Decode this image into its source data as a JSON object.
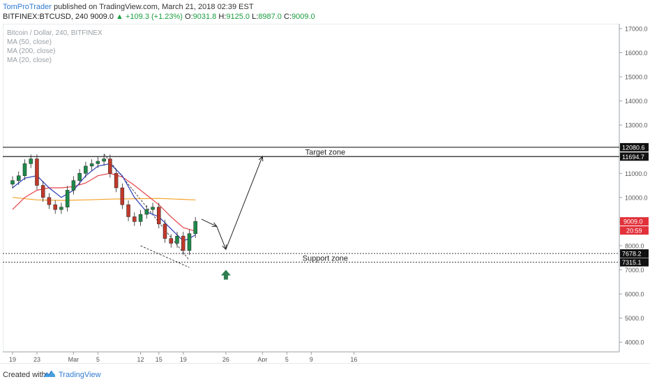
{
  "header": {
    "author": "TomProTrader",
    "published": "published on TradingView.com, March 21, 2018 02:39 EST",
    "symbol": "BITFINEX:BTCUSD, 240",
    "last": "9009.0",
    "change_arrow": "▲",
    "change": "+109.3 (+1.23%)",
    "open_label": "O:",
    "open": "9031.8",
    "high_label": "H:",
    "high": "9125.0",
    "low_label": "L:",
    "low": "8987.0",
    "close_label": "C:",
    "close": "9009.0"
  },
  "legend": {
    "title": "Bitcoin / Dollar, 240, BITFINEX",
    "ma50": "MA (50, close)",
    "ma200": "MA (200, close)",
    "ma20": "MA (20, close)"
  },
  "footer": {
    "created": "Created with",
    "brand": "TradingView"
  },
  "colors": {
    "up": "#1d8a4a",
    "down": "#c0392b",
    "ma50": "#e5454b",
    "ma200": "#f4a329",
    "ma20": "#2a3db7",
    "price_tag": "#e2313a",
    "arrow_green": "#2e7d4f"
  },
  "chart_data": {
    "type": "candlestick",
    "ylim": [
      3600,
      17200
    ],
    "y_ticks": [
      4000,
      5000,
      6000,
      7000,
      8000,
      9000,
      10000,
      11000,
      12000,
      13000,
      14000,
      15000,
      16000,
      17000
    ],
    "x_ticks": [
      "19",
      "23",
      "Mar",
      "5",
      "12",
      "15",
      "19",
      "26",
      "Apr",
      "5",
      "9",
      "16"
    ],
    "x_tick_days": [
      0,
      4,
      10,
      14,
      21,
      24,
      28,
      35,
      41,
      45,
      49,
      56
    ],
    "levels": [
      {
        "value": 12080.6,
        "label": "12080.6",
        "style": "solid"
      },
      {
        "value": 11694.7,
        "label": "11694.7",
        "style": "solid"
      },
      {
        "value": 7678.2,
        "label": "7678.2",
        "style": "dotted"
      },
      {
        "value": 7315.1,
        "label": "7315.1",
        "style": "dotted"
      }
    ],
    "price_tag": {
      "value": 9009.0,
      "label": "9009.0",
      "countdown": "20:59"
    },
    "zones": [
      {
        "label": "Target zone",
        "day": 41
      },
      {
        "label": "Support zone",
        "day": 41
      }
    ],
    "close_series": [
      {
        "day": 0,
        "close": 10700
      },
      {
        "day": 1,
        "close": 10900
      },
      {
        "day": 2,
        "close": 11400
      },
      {
        "day": 3,
        "close": 11600
      },
      {
        "day": 4,
        "close": 10500
      },
      {
        "day": 5,
        "close": 10000
      },
      {
        "day": 6,
        "close": 9700
      },
      {
        "day": 7,
        "close": 9500
      },
      {
        "day": 8,
        "close": 9600
      },
      {
        "day": 9,
        "close": 10300
      },
      {
        "day": 10,
        "close": 10700
      },
      {
        "day": 11,
        "close": 11000
      },
      {
        "day": 12,
        "close": 11300
      },
      {
        "day": 13,
        "close": 11400
      },
      {
        "day": 14,
        "close": 11500
      },
      {
        "day": 15,
        "close": 11600
      },
      {
        "day": 16,
        "close": 11000
      },
      {
        "day": 17,
        "close": 10400
      },
      {
        "day": 18,
        "close": 9700
      },
      {
        "day": 19,
        "close": 9200
      },
      {
        "day": 20,
        "close": 9000
      },
      {
        "day": 21,
        "close": 9300
      },
      {
        "day": 22,
        "close": 9500
      },
      {
        "day": 23,
        "close": 9600
      },
      {
        "day": 24,
        "close": 8900
      },
      {
        "day": 25,
        "close": 8300
      },
      {
        "day": 26,
        "close": 8100
      },
      {
        "day": 27,
        "close": 8400
      },
      {
        "day": 28,
        "close": 7800
      },
      {
        "day": 29,
        "close": 8500
      },
      {
        "day": 30,
        "close": 9009
      }
    ],
    "ma20": [
      {
        "day": 0,
        "value": 10400
      },
      {
        "day": 2,
        "value": 10800
      },
      {
        "day": 4,
        "value": 10900
      },
      {
        "day": 6,
        "value": 10400
      },
      {
        "day": 8,
        "value": 10000
      },
      {
        "day": 10,
        "value": 10300
      },
      {
        "day": 12,
        "value": 10900
      },
      {
        "day": 14,
        "value": 11300
      },
      {
        "day": 16,
        "value": 11400
      },
      {
        "day": 18,
        "value": 10900
      },
      {
        "day": 20,
        "value": 10000
      },
      {
        "day": 22,
        "value": 9400
      },
      {
        "day": 24,
        "value": 9200
      },
      {
        "day": 26,
        "value": 8700
      },
      {
        "day": 28,
        "value": 8200
      },
      {
        "day": 29,
        "value": 8300
      },
      {
        "day": 30,
        "value": 8450
      }
    ],
    "ma50": [
      {
        "day": 0,
        "value": 9500
      },
      {
        "day": 2,
        "value": 10000
      },
      {
        "day": 4,
        "value": 10300
      },
      {
        "day": 6,
        "value": 10400
      },
      {
        "day": 8,
        "value": 10400
      },
      {
        "day": 10,
        "value": 10450
      },
      {
        "day": 12,
        "value": 10600
      },
      {
        "day": 14,
        "value": 10900
      },
      {
        "day": 16,
        "value": 11000
      },
      {
        "day": 18,
        "value": 10850
      },
      {
        "day": 20,
        "value": 10500
      },
      {
        "day": 22,
        "value": 10100
      },
      {
        "day": 24,
        "value": 9700
      },
      {
        "day": 26,
        "value": 9200
      },
      {
        "day": 28,
        "value": 8750
      },
      {
        "day": 30,
        "value": 8600
      }
    ],
    "ma200": [
      {
        "day": 0,
        "value": 10000
      },
      {
        "day": 4,
        "value": 9900
      },
      {
        "day": 8,
        "value": 9880
      },
      {
        "day": 12,
        "value": 9900
      },
      {
        "day": 16,
        "value": 9930
      },
      {
        "day": 20,
        "value": 9950
      },
      {
        "day": 24,
        "value": 9960
      },
      {
        "day": 28,
        "value": 9920
      },
      {
        "day": 30,
        "value": 9900
      }
    ],
    "trendlines": [
      {
        "style": "dashed",
        "from": [
          15,
          11800
        ],
        "to": [
          29,
          7400
        ]
      },
      {
        "style": "dashed",
        "from": [
          21,
          8000
        ],
        "to": [
          29,
          7100
        ]
      }
    ],
    "projection": [
      {
        "day": 31,
        "value": 9100
      },
      {
        "day": 33.5,
        "value": 8800
      },
      {
        "day": 35,
        "value": 7850
      },
      {
        "day": 41,
        "value": 11700
      }
    ]
  }
}
